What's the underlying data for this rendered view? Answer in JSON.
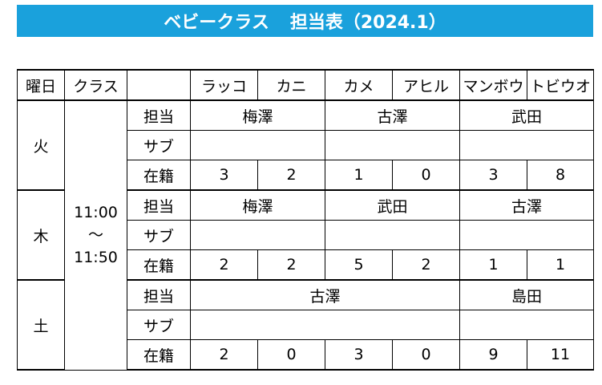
{
  "title": {
    "main": "ベビークラス",
    "sub": "担当表（2024.1）"
  },
  "header": {
    "day_col": "曜日",
    "class_col": "クラス",
    "classes": [
      "ラッコ",
      "カニ",
      "カメ",
      "アヒル",
      "マンボウ",
      "トビウオ"
    ]
  },
  "time": {
    "start": "11:00",
    "sep": "～",
    "end": "11:50"
  },
  "row_labels": {
    "tantou": "担当",
    "sub": "サブ",
    "zaiseki": "在籍"
  },
  "days": [
    {
      "day": "火",
      "tantou": [
        "梅澤",
        "古澤",
        "武田"
      ],
      "zaiseki": [
        "3",
        "2",
        "1",
        "0",
        "3",
        "8"
      ]
    },
    {
      "day": "木",
      "tantou": [
        "梅澤",
        "武田",
        "古澤"
      ],
      "zaiseki": [
        "2",
        "2",
        "5",
        "2",
        "1",
        "1"
      ]
    },
    {
      "day": "土",
      "tantou": [
        "古澤",
        "島田"
      ],
      "zaiseki": [
        "2",
        "0",
        "3",
        "0",
        "9",
        "11"
      ]
    }
  ],
  "colors": {
    "title_bg": "#1aa1dc",
    "title_text": "#ffffff"
  }
}
